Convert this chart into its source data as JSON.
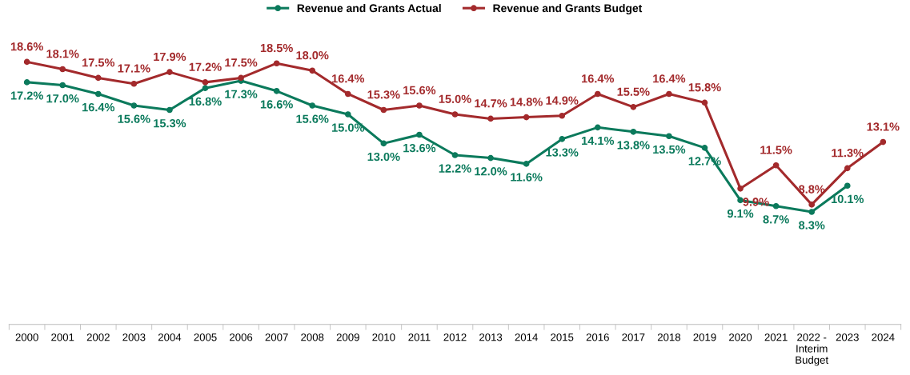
{
  "chart_data": {
    "type": "line",
    "categories": [
      "2000",
      "2001",
      "2002",
      "2003",
      "2004",
      "2005",
      "2006",
      "2007",
      "2008",
      "2009",
      "2010",
      "2011",
      "2012",
      "2013",
      "2014",
      "2015",
      "2016",
      "2017",
      "2018",
      "2019",
      "2020",
      "2021",
      "2022 -\nInterim\nBudget",
      "2023",
      "2024"
    ],
    "series": [
      {
        "name": "Revenue and Grants Actual",
        "color": "#0b7a5c",
        "values": [
          17.2,
          17.0,
          16.4,
          15.6,
          15.3,
          16.8,
          17.3,
          16.6,
          15.6,
          15.0,
          13.0,
          13.6,
          12.2,
          12.0,
          11.6,
          13.3,
          14.1,
          13.8,
          13.5,
          12.7,
          9.1,
          8.7,
          8.3,
          10.1,
          null
        ],
        "value_labels": [
          "17.2%",
          "17.0%",
          "16.4%",
          "15.6%",
          "15.3%",
          "16.8%",
          "17.3%",
          "16.6%",
          "15.6%",
          "15.0%",
          "13.0%",
          "13.6%",
          "12.2%",
          "12.0%",
          "11.6%",
          "13.3%",
          "14.1%",
          "13.8%",
          "13.5%",
          "12.7%",
          "9.1%",
          "8.7%",
          "8.3%",
          "10.1%",
          null
        ]
      },
      {
        "name": "Revenue and Grants Budget",
        "color": "#a32a2c",
        "values": [
          18.6,
          18.1,
          17.5,
          17.1,
          17.9,
          17.2,
          17.5,
          18.5,
          18.0,
          16.4,
          15.3,
          15.6,
          15.0,
          14.7,
          14.8,
          14.9,
          16.4,
          15.5,
          16.4,
          15.8,
          9.9,
          11.5,
          8.8,
          11.3,
          13.1
        ],
        "value_labels": [
          "18.6%",
          "18.1%",
          "17.5%",
          "17.1%",
          "17.9%",
          "17.2%",
          "17.5%",
          "18.5%",
          "18.0%",
          "16.4%",
          "15.3%",
          "15.6%",
          "15.0%",
          "14.7%",
          "14.8%",
          "14.9%",
          "16.4%",
          "15.5%",
          "16.4%",
          "15.8%",
          "9.9%",
          "11.5%",
          "8.8%",
          "11.3%",
          "13.1%"
        ]
      }
    ],
    "marker": "circle",
    "line_style": "solid",
    "legend": "top",
    "grid": false
  }
}
